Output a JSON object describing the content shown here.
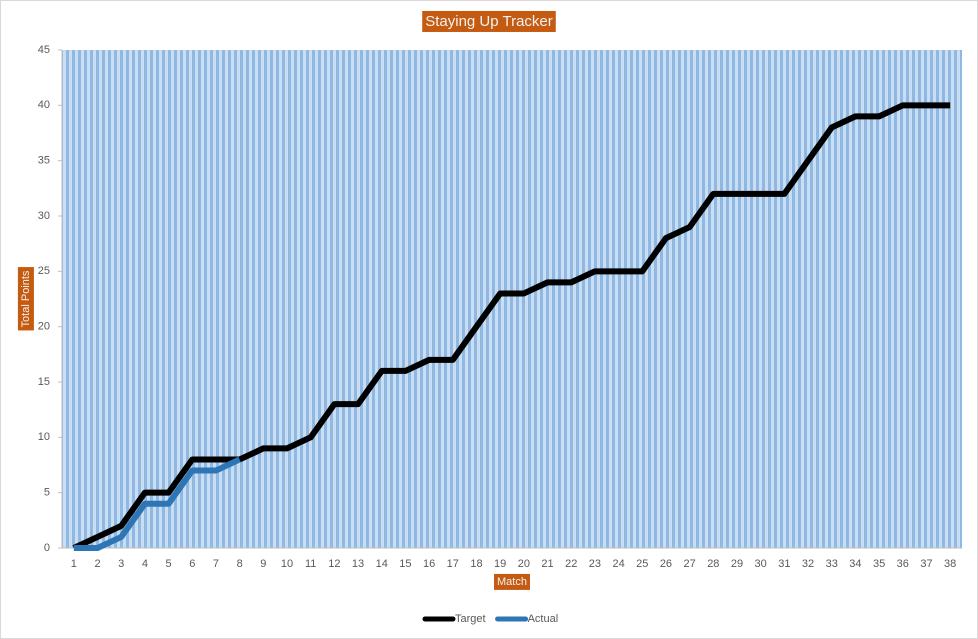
{
  "chart_data": {
    "type": "line",
    "title": "Staying Up Tracker",
    "x_label": "Match",
    "y_label": "Total Points",
    "categories": [
      1,
      2,
      3,
      4,
      5,
      6,
      7,
      8,
      9,
      10,
      11,
      12,
      13,
      14,
      15,
      16,
      17,
      18,
      19,
      20,
      21,
      22,
      23,
      24,
      25,
      26,
      27,
      28,
      29,
      30,
      31,
      32,
      33,
      34,
      35,
      36,
      37,
      38
    ],
    "series": [
      {
        "name": "Target",
        "color": "#000000",
        "values": [
          0,
          1,
          2,
          5,
          5,
          8,
          8,
          8,
          9,
          9,
          10,
          13,
          13,
          16,
          16,
          17,
          17,
          20,
          23,
          23,
          24,
          24,
          25,
          25,
          25,
          28,
          29,
          32,
          32,
          32,
          32,
          35,
          38,
          39,
          39,
          40,
          40,
          40
        ]
      },
      {
        "name": "Actual",
        "color": "#2e75b6",
        "values": [
          0,
          0,
          1,
          4,
          4,
          7,
          7,
          8,
          null,
          null,
          null,
          null,
          null,
          null,
          null,
          null,
          null,
          null,
          null,
          null,
          null,
          null,
          null,
          null,
          null,
          null,
          null,
          null,
          null,
          null,
          null,
          null,
          null,
          null,
          null,
          null,
          null,
          null
        ]
      }
    ],
    "ylim": [
      0,
      45
    ],
    "yticks": [
      0,
      5,
      10,
      15,
      20,
      25,
      30,
      35,
      40,
      45
    ],
    "legend": "bottom"
  }
}
